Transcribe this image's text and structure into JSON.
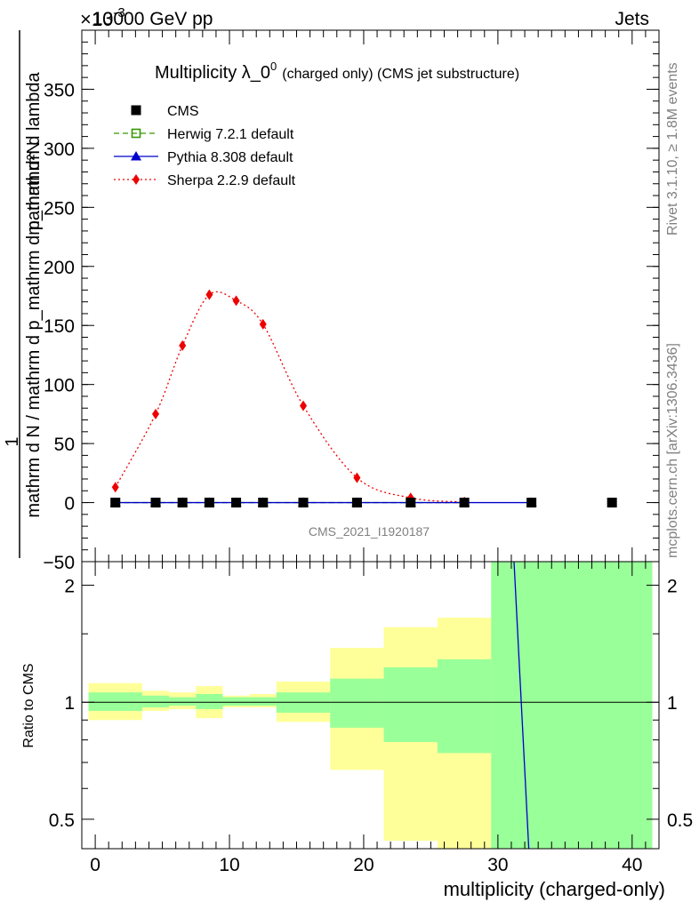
{
  "header": {
    "energy": "13000 GeV pp",
    "category": "Jets",
    "exponent_label": "×10",
    "exponent_sup": "-3"
  },
  "side": {
    "rivet": "Rivet 3.1.10, ≥ 1.8M events",
    "site": "mcplots.cern.ch [arXiv:1306.3436]"
  },
  "title": {
    "main": "Multiplicity λ_0",
    "sup": "0",
    "sub": "(charged only) (CMS jet substructure)"
  },
  "watermark": "CMS_2021_I1920187",
  "legend": [
    {
      "label": "CMS",
      "color": "#000000",
      "style": "square"
    },
    {
      "label": "Herwig 7.2.1 default",
      "color": "#339900",
      "style": "open-square-dashed"
    },
    {
      "label": "Pythia 8.308 default",
      "color": "#0000cc",
      "style": "triangle-solid"
    },
    {
      "label": "Sherpa 2.2.9 default",
      "color": "#ee0000",
      "style": "diamond-dotted"
    }
  ],
  "ylabel_main": {
    "top": "mathrm d²N",
    "numerator": "1",
    "denominator": "mathrm d N / mathrm d p_mathrm d p_mathrm d lambda"
  },
  "ylabel_ratio": "Ratio to CMS",
  "xlabel": "multiplicity (charged-only)",
  "chart_data": [
    {
      "type": "line",
      "panel": "main",
      "xlim": [
        -1,
        42
      ],
      "ylim": [
        -50,
        400
      ],
      "yticks": [
        -50,
        0,
        50,
        100,
        150,
        200,
        250,
        300,
        350
      ],
      "ytick_labels": [
        "−50",
        "0",
        "50",
        "100",
        "150",
        "200",
        "250",
        "300",
        "350"
      ],
      "series": [
        {
          "name": "CMS",
          "x": [
            1.5,
            4.5,
            6.5,
            8.5,
            10.5,
            12.5,
            15.5,
            19.5,
            23.5,
            27.5,
            32.5,
            38.5
          ],
          "y": [
            0,
            0,
            0,
            0,
            0,
            0,
            0,
            0,
            0,
            0,
            0,
            0
          ]
        },
        {
          "name": "Herwig 7.2.1 default",
          "x": [
            1.5,
            4.5,
            6.5,
            8.5,
            10.5,
            12.5,
            15.5,
            19.5,
            23.5,
            27.5
          ],
          "y": [
            0,
            0,
            0,
            0,
            0,
            0,
            0,
            0,
            0,
            0
          ]
        },
        {
          "name": "Pythia 8.308 default",
          "x": [
            1.5,
            4.5,
            6.5,
            8.5,
            10.5,
            12.5,
            15.5,
            19.5,
            23.5,
            27.5,
            32.5
          ],
          "y": [
            0,
            0,
            0,
            0,
            0,
            0,
            0,
            0,
            0,
            0,
            0
          ]
        },
        {
          "name": "Sherpa 2.2.9 default",
          "x": [
            1.5,
            4.5,
            6.5,
            8.5,
            10.5,
            12.5,
            15.5,
            19.5,
            23.5,
            27.5
          ],
          "y": [
            13,
            75,
            133,
            176,
            171,
            151,
            82,
            21,
            4,
            0.5
          ]
        }
      ]
    },
    {
      "type": "area",
      "panel": "ratio",
      "xlim": [
        -1,
        42
      ],
      "ylim": [
        0.42,
        2.3
      ],
      "yticks": [
        0.5,
        1,
        2
      ],
      "ytick_labels": [
        "0.5",
        "1",
        "2"
      ],
      "xticks": [
        0,
        10,
        20,
        30,
        40
      ],
      "xtick_labels": [
        "0",
        "10",
        "20",
        "30",
        "40"
      ],
      "bins": [
        {
          "lo": -0.5,
          "hi": 3.5,
          "stat_lo": 0.95,
          "stat_hi": 1.06,
          "tot_lo": 0.9,
          "tot_hi": 1.12
        },
        {
          "lo": 3.5,
          "hi": 5.5,
          "stat_lo": 0.97,
          "stat_hi": 1.04,
          "tot_lo": 0.95,
          "tot_hi": 1.07
        },
        {
          "lo": 5.5,
          "hi": 7.5,
          "stat_lo": 0.98,
          "stat_hi": 1.03,
          "tot_lo": 0.96,
          "tot_hi": 1.06
        },
        {
          "lo": 7.5,
          "hi": 9.5,
          "stat_lo": 0.96,
          "stat_hi": 1.05,
          "tot_lo": 0.91,
          "tot_hi": 1.1
        },
        {
          "lo": 9.5,
          "hi": 11.5,
          "stat_lo": 0.98,
          "stat_hi": 1.03,
          "tot_lo": 0.97,
          "tot_hi": 1.04
        },
        {
          "lo": 11.5,
          "hi": 13.5,
          "stat_lo": 0.98,
          "stat_hi": 1.03,
          "tot_lo": 0.97,
          "tot_hi": 1.05
        },
        {
          "lo": 13.5,
          "hi": 17.5,
          "stat_lo": 0.94,
          "stat_hi": 1.06,
          "tot_lo": 0.89,
          "tot_hi": 1.13
        },
        {
          "lo": 17.5,
          "hi": 21.5,
          "stat_lo": 0.86,
          "stat_hi": 1.15,
          "tot_lo": 0.67,
          "tot_hi": 1.38
        },
        {
          "lo": 21.5,
          "hi": 25.5,
          "stat_lo": 0.79,
          "stat_hi": 1.23,
          "tot_lo": 0.44,
          "tot_hi": 1.56
        },
        {
          "lo": 25.5,
          "hi": 29.5,
          "stat_lo": 0.74,
          "stat_hi": 1.29,
          "tot_lo": 0.42,
          "tot_hi": 1.65
        },
        {
          "lo": 29.5,
          "hi": 41.5,
          "stat_lo": 0.42,
          "stat_hi": 2.3,
          "tot_lo": 0.42,
          "tot_hi": 2.3
        }
      ],
      "series": [
        {
          "name": "Pythia 8.308 / CMS",
          "x": [
            31.2,
            32.3
          ],
          "y": [
            2.3,
            0.42
          ]
        }
      ]
    }
  ],
  "colors": {
    "stat_band": "#99ff99",
    "tot_band": "#ffff99",
    "herwig": "#339900",
    "pythia": "#0000cc",
    "sherpa": "#ee0000",
    "cms": "#000000"
  }
}
